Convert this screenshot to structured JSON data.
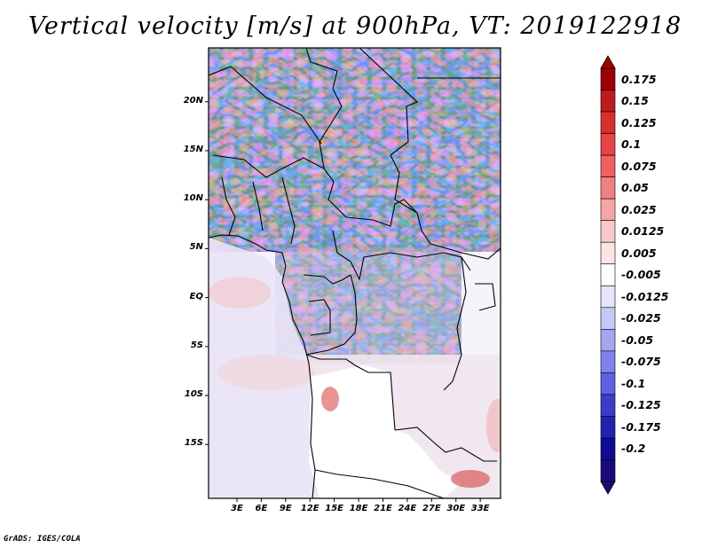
{
  "title": "Vertical velocity [m/s] at 900hPa, VT: 2019122918",
  "footer": "GrADS: IGES/COLA",
  "map": {
    "field": "vertical velocity",
    "level": "900hPa",
    "valid_time": "2019122918",
    "units": "m/s",
    "lon_range": [
      -0.5,
      35.5
    ],
    "lat_range": [
      -20.5,
      25.5
    ],
    "lat_labels": [
      "20N",
      "15N",
      "10N",
      "5N",
      "EQ",
      "5S",
      "10S",
      "15S"
    ],
    "lat_values": [
      20,
      15,
      10,
      5,
      0,
      -5,
      -10,
      -15
    ],
    "lon_labels": [
      "3E",
      "6E",
      "9E",
      "12E",
      "15E",
      "18E",
      "21E",
      "24E",
      "27E",
      "30E",
      "33E"
    ],
    "lon_values": [
      3,
      6,
      9,
      12,
      15,
      18,
      21,
      24,
      27,
      30,
      33
    ]
  },
  "colorbar": {
    "labels": [
      "0.175",
      "0.15",
      "0.125",
      "0.1",
      "0.075",
      "0.05",
      "0.025",
      "0.0125",
      "0.005",
      "-0.005",
      "-0.0125",
      "-0.025",
      "-0.05",
      "-0.075",
      "-0.1",
      "-0.125",
      "-0.175",
      "-0.2"
    ],
    "colors": [
      "#a00000",
      "#be1c1c",
      "#d83030",
      "#e84444",
      "#f06060",
      "#f28080",
      "#f5a5a5",
      "#f8c8c8",
      "#fce4e4",
      "#ffffff",
      "#e4e4fc",
      "#c8c8f8",
      "#a5a5f2",
      "#8080ee",
      "#6060e0",
      "#3c3cc8",
      "#2222b0",
      "#100a96",
      "#1a0a78"
    ]
  }
}
